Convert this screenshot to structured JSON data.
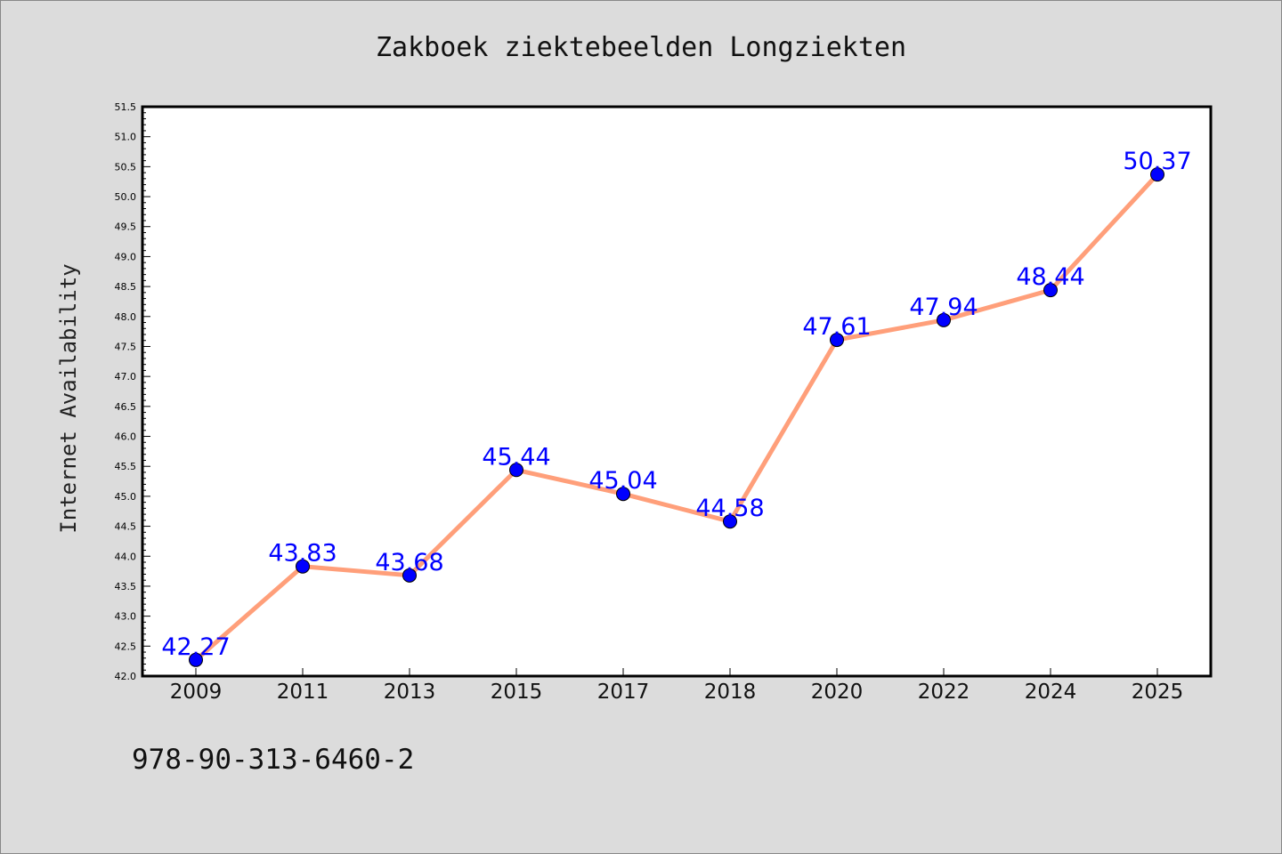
{
  "chart_data": {
    "type": "line",
    "title": "Zakboek ziektebeelden Longziekten",
    "xlabel": "",
    "ylabel": "Internet Availability",
    "categories": [
      "2009",
      "2011",
      "2013",
      "2015",
      "2017",
      "2018",
      "2020",
      "2022",
      "2024",
      "2025"
    ],
    "series": [
      {
        "values": [
          42.27,
          43.83,
          43.68,
          45.44,
          45.04,
          44.58,
          47.61,
          47.94,
          48.44,
          50.37
        ],
        "data_labels": [
          "42.27",
          "43.83",
          "43.68",
          "45.44",
          "45.04",
          "44.58",
          "47.61",
          "47.94",
          "48.44",
          "50.37"
        ]
      }
    ],
    "ylim": [
      42.0,
      51.5
    ],
    "y_ticks": [
      "42.0",
      "42.5",
      "43.0",
      "43.5",
      "44.0",
      "44.5",
      "45.0",
      "45.5",
      "46.0",
      "46.5",
      "47.0",
      "47.5",
      "48.0",
      "48.5",
      "49.0",
      "49.5",
      "50.0",
      "50.5",
      "51.0",
      "51.5"
    ],
    "grid": false,
    "legend": "none",
    "colors": {
      "line": "#ff9f7a",
      "marker": "#0000ff",
      "label": "#0000ff",
      "background": "#dcdcdc",
      "plot_area": "#ffffff"
    }
  },
  "footer": {
    "isbn": "978-90-313-6460-2"
  }
}
